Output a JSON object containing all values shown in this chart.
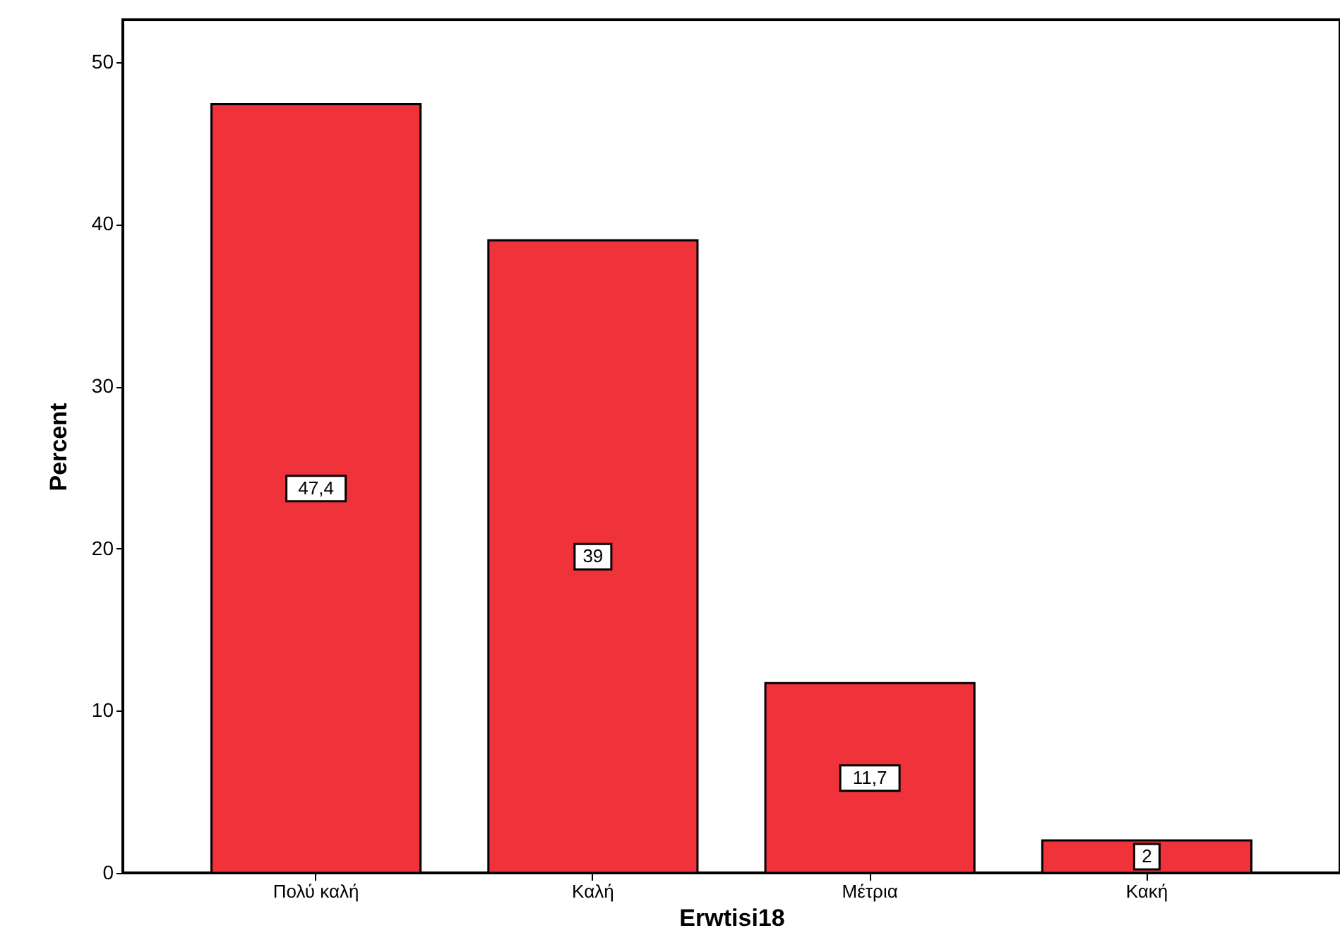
{
  "chart_data": {
    "type": "bar",
    "categories": [
      "Πολύ καλή",
      "Καλή",
      "Μέτρια",
      "Κακή"
    ],
    "values": [
      47.4,
      39,
      11.7,
      2
    ],
    "value_labels": [
      "47,4",
      "39",
      "11,7",
      "2"
    ],
    "color": "#f0333a",
    "xlabel": "Erwtisi18",
    "ylabel": "Percent",
    "ylim": [
      0,
      52.6
    ],
    "yticks": [
      0,
      10,
      20,
      30,
      40,
      50
    ],
    "grid": false
  }
}
